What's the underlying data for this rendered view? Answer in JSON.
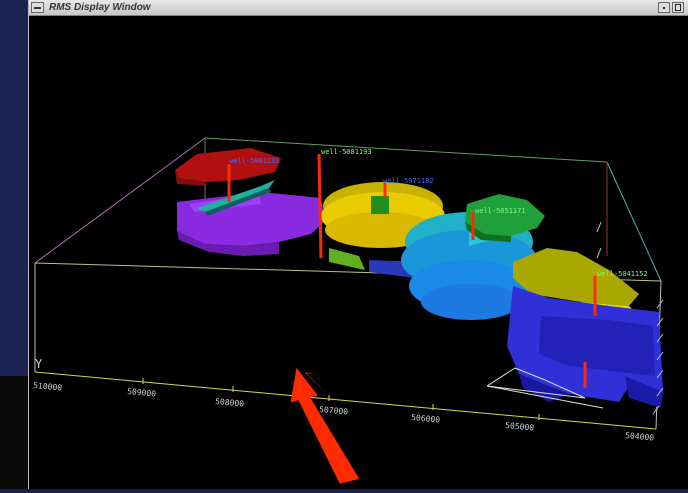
{
  "window": {
    "title": "RMS Display Window"
  },
  "icons": {
    "window_menu": "window-menu-icon",
    "minimize": "minimize-icon",
    "maximize": "maximize-icon"
  },
  "colors": {
    "well_stick": "#ff2a00",
    "well_label_green": "#7cff7c",
    "well_label_blue": "#2a5cff",
    "axis_yellow": "#d8d84a",
    "annotation_arrow": "#ff2a00"
  },
  "viewport": {
    "axis_label": "Y",
    "axis_ticks": [
      "510000",
      "509000",
      "508000",
      "507000",
      "506000",
      "505000",
      "504000"
    ],
    "wells": [
      {
        "label": "well-5081191",
        "color": "#3a6cff"
      },
      {
        "label": "well-5081193",
        "color": "#7cff7c"
      },
      {
        "label": "well-5071182",
        "color": "#3a6cff"
      },
      {
        "label": "well-5051171",
        "color": "#7cff7c"
      },
      {
        "label": "well-5041152",
        "color": "#7cff7c"
      }
    ]
  }
}
